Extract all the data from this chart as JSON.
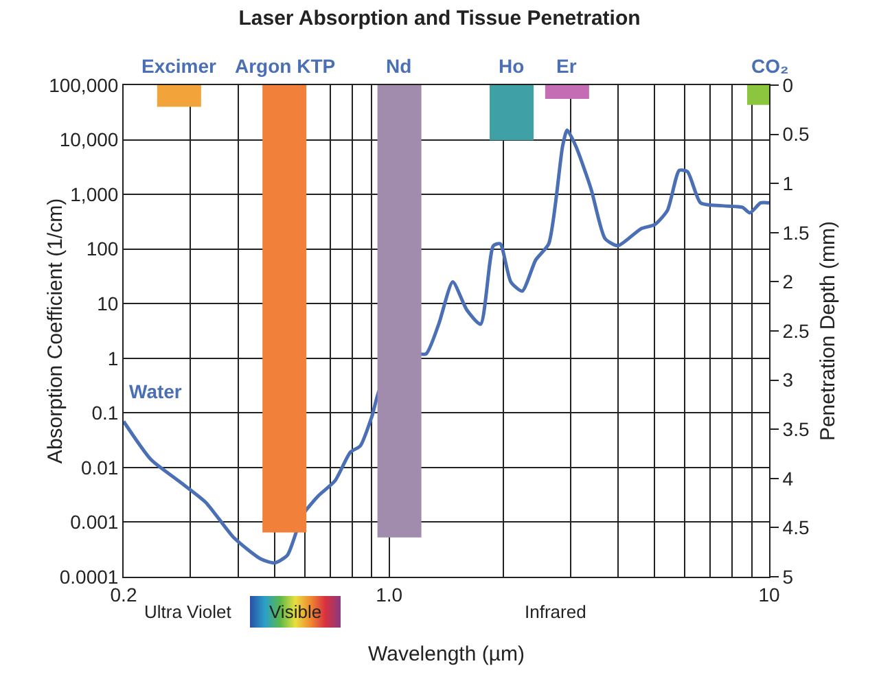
{
  "chart_data": {
    "type": "line",
    "title": "Laser Absorption and Tissue Penetration",
    "xlabel": "Wavelength (µm)",
    "ylabel": "Absorption Coefficient (1/cm)",
    "y2label": "Penetration Depth (mm)",
    "log": "xy",
    "grid": true,
    "xlim": [
      0.2,
      10
    ],
    "xticks": [
      0.2,
      {
        "value": 0.3,
        "label": null
      },
      {
        "value": 0.4,
        "label": null
      },
      {
        "value": 0.5,
        "label": null
      },
      {
        "value": 0.6,
        "label": null
      },
      {
        "value": 0.7,
        "label": null
      },
      {
        "value": 0.8,
        "label": null
      },
      {
        "value": 0.9,
        "label": null
      },
      {
        "value": 1,
        "label": "1.0"
      },
      {
        "value": 2,
        "label": null
      },
      {
        "value": 3,
        "label": null
      },
      {
        "value": 4,
        "label": null
      },
      {
        "value": 5,
        "label": null
      },
      {
        "value": 6,
        "label": null
      },
      {
        "value": 7,
        "label": null
      },
      {
        "value": 8,
        "label": null
      },
      {
        "value": 9,
        "label": null
      },
      10
    ],
    "ylim": [
      0.0001,
      100000
    ],
    "yticks": [
      0.0001,
      0.001,
      0.01,
      0.1,
      1,
      10,
      100,
      {
        "value": 1000,
        "label": "1,000"
      },
      {
        "value": 10000,
        "label": "10,000"
      },
      {
        "value": 100000,
        "label": "100,000"
      }
    ],
    "y2lim": [
      5,
      0
    ],
    "y2ticks": [
      0,
      0.5,
      1,
      1.5,
      2,
      2.5,
      3,
      3.5,
      4,
      4.5,
      5
    ],
    "annotations": [
      "Ultra Violet",
      "Visible",
      "Infrared"
    ],
    "series": [
      {
        "name": "Water",
        "color": "#4a6fb5",
        "x": [
          0.2,
          0.236,
          0.279,
          0.329,
          0.39,
          0.46,
          0.5,
          0.54,
          0.59,
          0.65,
          0.72,
          0.79,
          0.84,
          0.9,
          0.95,
          1.0,
          1.07,
          1.15,
          1.25,
          1.35,
          1.47,
          1.6,
          1.74,
          1.88,
          1.96,
          2.09,
          2.24,
          2.43,
          2.63,
          2.86,
          2.94,
          3.1,
          3.4,
          3.7,
          4.0,
          4.6,
          5.0,
          5.4,
          5.8,
          6.1,
          6.6,
          7.5,
          8.5,
          8.9,
          9.5,
          10
        ],
        "values": [
          0.07,
          0.014,
          0.0057,
          0.0023,
          0.00052,
          0.00021,
          0.00018,
          0.00025,
          0.0013,
          0.003,
          0.0057,
          0.019,
          0.025,
          0.085,
          0.3,
          0.35,
          0.1,
          1.2,
          1.2,
          4.2,
          25,
          7.7,
          4.2,
          115,
          125,
          25,
          17,
          63,
          125,
          7600,
          15000,
          7600,
          1250,
          155,
          115,
          235,
          280,
          510,
          2750,
          2600,
          700,
          620,
          580,
          460,
          700,
          700
        ]
      },
      {
        "name": "Excimer",
        "type": "bar",
        "axis": "y2",
        "color": "#f2a33a",
        "x": [
          0.28
        ],
        "values": [
          0.22
        ]
      },
      {
        "name": "Argon KTP",
        "type": "bar",
        "axis": "y2",
        "color": "#f0803a",
        "x": [
          0.53
        ],
        "values": [
          4.55
        ]
      },
      {
        "name": "Nd",
        "type": "bar",
        "axis": "y2",
        "color": "#a18cae",
        "x": [
          1.064
        ],
        "values": [
          4.6
        ]
      },
      {
        "name": "Ho",
        "type": "bar",
        "axis": "y2",
        "color": "#3fa0a6",
        "x": [
          2.1
        ],
        "values": [
          0.56
        ]
      },
      {
        "name": "Er",
        "type": "bar",
        "axis": "y2",
        "color": "#c46cb4",
        "x": [
          2.94
        ],
        "values": [
          0.14
        ]
      },
      {
        "name": "CO₂",
        "type": "bar",
        "axis": "y2",
        "color": "#8cc63f",
        "x": [
          10
        ],
        "values": [
          0.2
        ]
      }
    ]
  }
}
